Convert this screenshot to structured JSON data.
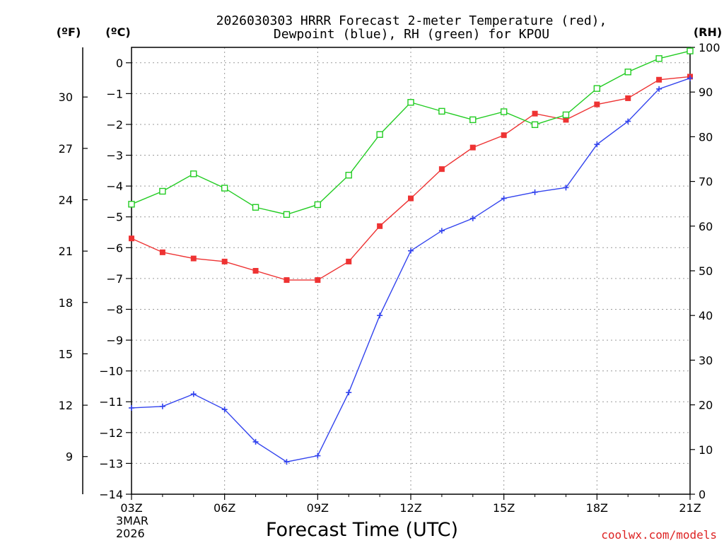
{
  "chart_data": {
    "type": "line",
    "title_line1": "2026030303 HRRR Forecast 2-meter Temperature (red),",
    "title_line2": "Dewpoint (blue), RH (green) for KPOU",
    "xlabel": "Forecast Time (UTC)",
    "left_outer_axis_label": "(ºF)",
    "left_axis_label": "(ºC)",
    "right_axis_label": "(RH)",
    "credit": "coolwx.com/models",
    "x_hours": [
      3,
      4,
      5,
      6,
      7,
      8,
      9,
      10,
      11,
      12,
      13,
      14,
      15,
      16,
      17,
      18,
      19,
      20,
      21
    ],
    "x_ticks": [
      {
        "hour": 3,
        "label": "03Z"
      },
      {
        "hour": 6,
        "label": "06Z"
      },
      {
        "hour": 9,
        "label": "09Z"
      },
      {
        "hour": 12,
        "label": "12Z"
      },
      {
        "hour": 15,
        "label": "15Z"
      },
      {
        "hour": 18,
        "label": "18Z"
      },
      {
        "hour": 21,
        "label": "21Z"
      }
    ],
    "date_line1": "3MAR",
    "date_line2": "2026",
    "celsius_range": [
      -14,
      0.5
    ],
    "celsius_ticks": [
      0,
      -1,
      -2,
      -3,
      -4,
      -5,
      -6,
      -7,
      -8,
      -9,
      -10,
      -11,
      -12,
      -13,
      -14
    ],
    "fahrenheit_ticks": [
      30,
      27,
      24,
      21,
      18,
      15,
      12,
      9
    ],
    "rh_range": [
      0,
      100
    ],
    "rh_ticks": [
      0,
      10,
      20,
      30,
      40,
      50,
      60,
      70,
      80,
      90,
      100
    ],
    "grid": true,
    "series": [
      {
        "name": "2-meter Temperature",
        "axis": "celsius",
        "color": "#ee3333",
        "marker": "filled-square",
        "values": [
          -5.7,
          -6.15,
          -6.35,
          -6.45,
          -6.75,
          -7.05,
          -7.05,
          -6.45,
          -5.3,
          -4.4,
          -3.45,
          -2.75,
          -2.35,
          -1.65,
          -1.85,
          -1.35,
          -1.15,
          -0.55,
          -0.45
        ]
      },
      {
        "name": "Dewpoint",
        "axis": "celsius",
        "color": "#3344ee",
        "marker": "plus",
        "values": [
          -11.2,
          -11.15,
          -10.75,
          -11.25,
          -12.3,
          -12.95,
          -12.75,
          -10.7,
          -8.2,
          -6.1,
          -5.45,
          -5.05,
          -4.4,
          -4.2,
          -4.05,
          -2.65,
          -1.9,
          -0.85,
          -0.5
        ]
      },
      {
        "name": "RH",
        "axis": "rh",
        "color": "#22cc22",
        "marker": "open-square",
        "values": [
          64.9,
          67.8,
          71.7,
          68.5,
          64.2,
          62.6,
          64.8,
          71.4,
          80.5,
          87.7,
          85.7,
          83.8,
          85.6,
          82.7,
          84.9,
          90.8,
          94.5,
          97.5,
          99.2
        ]
      }
    ]
  }
}
